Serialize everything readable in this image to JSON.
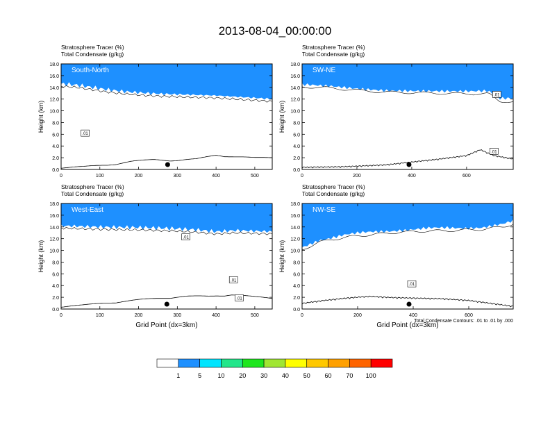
{
  "title": "2013-08-04_00:00:00",
  "colorbar": {
    "colors": [
      "#ffffff",
      "#1e90ff",
      "#00e5ff",
      "#22e68a",
      "#1ee61e",
      "#a0e632",
      "#ffff00",
      "#ffc800",
      "#ffa000",
      "#ff6400",
      "#ff0000"
    ],
    "labels": [
      "1",
      "5",
      "10",
      "20",
      "30",
      "40",
      "50",
      "60",
      "70",
      "100"
    ]
  },
  "contour_note": "Total Condensate Contours: .01 to .01 by .000",
  "chart_data": [
    {
      "type": "heatmap",
      "label": "South-North",
      "subtitle_left": "Stratosphere Tracer",
      "subtitle_left_units": "(%)",
      "subtitle_left2": "Total Condensate",
      "subtitle_left2_units": "(g/kg)",
      "ylabel": "Height (km)",
      "xlabel": "",
      "xlim": [
        0,
        545
      ],
      "ylim": [
        0,
        18
      ],
      "xticks": [
        "0",
        "100",
        "200",
        "300",
        "400",
        "500"
      ],
      "xtick_values": [
        0,
        100,
        200,
        300,
        400,
        500
      ],
      "yticks": [
        "0.0",
        "2.0",
        "4.0",
        "6.0",
        "8.0",
        "10.0",
        "12.0",
        "14.0",
        "16.0",
        "18.0"
      ],
      "tropopause_km": [
        [
          0,
          14.6
        ],
        [
          40,
          14.4
        ],
        [
          80,
          14.0
        ],
        [
          120,
          13.6
        ],
        [
          160,
          13.3
        ],
        [
          200,
          13.1
        ],
        [
          250,
          12.9
        ],
        [
          300,
          12.8
        ],
        [
          350,
          12.7
        ],
        [
          400,
          12.6
        ],
        [
          450,
          12.4
        ],
        [
          500,
          12.2
        ],
        [
          545,
          12.0
        ]
      ],
      "terrain_km": [
        [
          0,
          0.2
        ],
        [
          60,
          0.3
        ],
        [
          120,
          0.6
        ],
        [
          180,
          1.2
        ],
        [
          240,
          1.5
        ],
        [
          300,
          1.4
        ],
        [
          350,
          1.6
        ],
        [
          400,
          2.3
        ],
        [
          450,
          2.0
        ],
        [
          500,
          1.8
        ],
        [
          545,
          1.9
        ]
      ],
      "marker_x": 275,
      "contour_labels": [
        {
          "text": ".01",
          "x": 62,
          "y": 6.2
        }
      ]
    },
    {
      "type": "heatmap",
      "label": "SW-NE",
      "subtitle_left": "Stratosphere Tracer",
      "subtitle_left_units": "(%)",
      "subtitle_left2": "Total Condensate",
      "subtitle_left2_units": "(g/kg)",
      "ylabel": "Height (km)",
      "xlabel": "",
      "xlim": [
        0,
        770
      ],
      "ylim": [
        0,
        18
      ],
      "xticks": [
        "0",
        "200",
        "400",
        "600"
      ],
      "xtick_values": [
        0,
        200,
        400,
        600
      ],
      "yticks": [
        "0.0",
        "2.0",
        "4.0",
        "6.0",
        "8.0",
        "10.0",
        "12.0",
        "14.0",
        "16.0",
        "18.0"
      ],
      "tropopause_km": [
        [
          0,
          14.5
        ],
        [
          100,
          14.3
        ],
        [
          200,
          13.9
        ],
        [
          300,
          13.6
        ],
        [
          400,
          13.5
        ],
        [
          500,
          13.4
        ],
        [
          600,
          13.3
        ],
        [
          680,
          13.3
        ],
        [
          720,
          12.0
        ],
        [
          770,
          12.0
        ]
      ],
      "terrain_km": [
        [
          0,
          0.2
        ],
        [
          150,
          0.3
        ],
        [
          300,
          0.6
        ],
        [
          400,
          1.1
        ],
        [
          500,
          1.6
        ],
        [
          600,
          2.2
        ],
        [
          650,
          3.2
        ],
        [
          700,
          2.2
        ],
        [
          770,
          1.6
        ]
      ],
      "marker_x": 390,
      "contour_labels": [
        {
          "text": ".01",
          "x": 710,
          "y": 12.8
        },
        {
          "text": ".01",
          "x": 700,
          "y": 3.1
        }
      ]
    },
    {
      "type": "heatmap",
      "label": "West-East",
      "subtitle_left": "Stratosphere Tracer",
      "subtitle_left_units": "(%)",
      "subtitle_left2": "Total Condensate",
      "subtitle_left2_units": "(g/kg)",
      "ylabel": "Height (km)",
      "xlabel": "Grid Point (dx=3km)",
      "xlim": [
        0,
        545
      ],
      "ylim": [
        0,
        18
      ],
      "xticks": [
        "0",
        "100",
        "200",
        "300",
        "400",
        "500"
      ],
      "xtick_values": [
        0,
        100,
        200,
        300,
        400,
        500
      ],
      "yticks": [
        "0.0",
        "2.0",
        "4.0",
        "6.0",
        "8.0",
        "10.0",
        "12.0",
        "14.0",
        "16.0",
        "18.0"
      ],
      "tropopause_km": [
        [
          0,
          14.2
        ],
        [
          100,
          14.0
        ],
        [
          200,
          13.9
        ],
        [
          300,
          13.7
        ],
        [
          350,
          13.5
        ],
        [
          400,
          13.2
        ],
        [
          450,
          13.4
        ],
        [
          500,
          13.3
        ],
        [
          545,
          13.2
        ]
      ],
      "terrain_km": [
        [
          0,
          0.3
        ],
        [
          60,
          0.5
        ],
        [
          120,
          0.9
        ],
        [
          200,
          1.4
        ],
        [
          260,
          1.7
        ],
        [
          320,
          2.0
        ],
        [
          380,
          2.0
        ],
        [
          440,
          2.3
        ],
        [
          500,
          1.9
        ],
        [
          545,
          1.7
        ]
      ],
      "marker_x": 273,
      "contour_labels": [
        {
          "text": ".01",
          "x": 322,
          "y": 12.3
        },
        {
          "text": ".01",
          "x": 445,
          "y": 5.0
        },
        {
          "text": ".01",
          "x": 460,
          "y": 1.9
        }
      ]
    },
    {
      "type": "heatmap",
      "label": "NW-SE",
      "subtitle_left": "Stratosphere Tracer",
      "subtitle_left_units": "(%)",
      "subtitle_left2": "Total Condensate",
      "subtitle_left2_units": "(g/kg)",
      "ylabel": "Height (km)",
      "xlabel": "Grid Point (dx=3km)",
      "xlim": [
        0,
        760
      ],
      "ylim": [
        0,
        18
      ],
      "xticks": [
        "0",
        "200",
        "400",
        "600"
      ],
      "xtick_values": [
        0,
        200,
        400,
        600
      ],
      "yticks": [
        "0.0",
        "2.0",
        "4.0",
        "6.0",
        "8.0",
        "10.0",
        "12.0",
        "14.0",
        "16.0",
        "18.0"
      ],
      "tropopause_km": [
        [
          0,
          10.5
        ],
        [
          60,
          11.8
        ],
        [
          150,
          12.6
        ],
        [
          250,
          13.1
        ],
        [
          350,
          13.5
        ],
        [
          450,
          13.7
        ],
        [
          550,
          13.8
        ],
        [
          650,
          14.0
        ],
        [
          720,
          14.4
        ],
        [
          760,
          14.9
        ]
      ],
      "terrain_km": [
        [
          0,
          0.8
        ],
        [
          80,
          1.3
        ],
        [
          160,
          1.7
        ],
        [
          240,
          2.0
        ],
        [
          320,
          1.8
        ],
        [
          400,
          1.7
        ],
        [
          500,
          1.6
        ],
        [
          600,
          1.3
        ],
        [
          680,
          0.8
        ],
        [
          760,
          0.3
        ]
      ],
      "marker_x": 385,
      "contour_labels": [
        {
          "text": ".01",
          "x": 395,
          "y": 4.3
        }
      ]
    }
  ]
}
